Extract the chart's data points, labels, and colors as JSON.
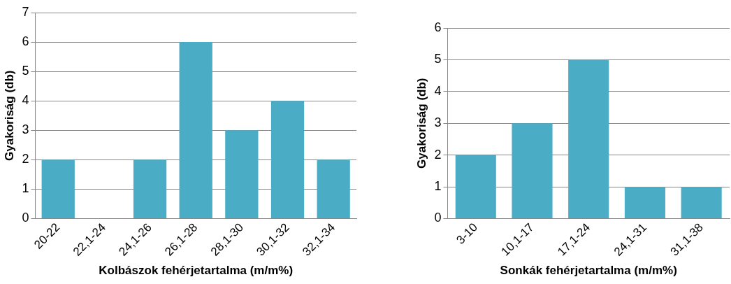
{
  "chart_data": [
    {
      "type": "bar",
      "xlabel": "Kolbászok fehérjetartalma (m/m%)",
      "ylabel": "Gyakoriság (db)",
      "categories": [
        "20-22",
        "22,1-24",
        "24,1-26",
        "26,1-28",
        "28,1-30",
        "30,1-32",
        "32,1-34"
      ],
      "values": [
        2,
        0,
        2,
        6,
        3,
        4,
        2
      ],
      "color": "#4bacc6",
      "ylim": [
        0,
        7
      ],
      "yticks": [
        0,
        1,
        2,
        3,
        4,
        5,
        6,
        7
      ],
      "grid": "y",
      "legend": false
    },
    {
      "type": "bar",
      "xlabel": "Sonkák fehérjetartalma (m/m%)",
      "ylabel": "Gyakoriság (db)",
      "categories": [
        "3-10",
        "10,1-17",
        "17,1-24",
        "24,1-31",
        "31,1-38"
      ],
      "values": [
        2,
        3,
        5,
        1,
        1
      ],
      "color": "#4bacc6",
      "ylim": [
        0,
        6
      ],
      "yticks": [
        0,
        1,
        2,
        3,
        4,
        5,
        6
      ],
      "grid": "y",
      "legend": false
    }
  ]
}
